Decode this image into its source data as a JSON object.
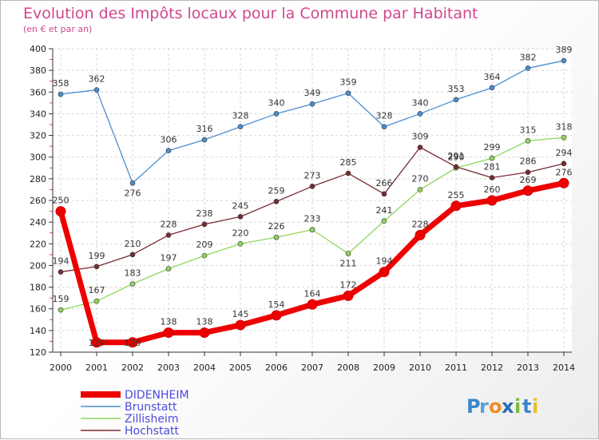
{
  "chart_data": {
    "type": "line",
    "title": "Evolution des Impôts locaux pour la Commune par Habitant",
    "subtitle": "(en € et par an)",
    "xlabel": "",
    "ylabel": "",
    "x": [
      "2000",
      "2001",
      "2002",
      "2003",
      "2004",
      "2005",
      "2006",
      "2007",
      "2008",
      "2009",
      "2010",
      "2011",
      "2012",
      "2013",
      "2014"
    ],
    "ylim": [
      120,
      400
    ],
    "yticks": [
      120,
      140,
      160,
      180,
      200,
      220,
      240,
      260,
      280,
      300,
      320,
      340,
      360,
      380,
      400
    ],
    "grid": true,
    "legend_position": "bottom-left",
    "series": [
      {
        "name": "Brunstatt",
        "color": "#4a8fd0",
        "values": [
          358,
          362,
          276,
          306,
          316,
          328,
          340,
          349,
          359,
          328,
          340,
          353,
          364,
          382,
          389
        ]
      },
      {
        "name": "Zillisheim",
        "color": "#8fd65a",
        "values": [
          159,
          167,
          183,
          197,
          209,
          220,
          226,
          233,
          211,
          241,
          270,
          290,
          299,
          315,
          318
        ]
      },
      {
        "name": "Hochstatt",
        "color": "#7a2a33",
        "values": [
          194,
          199,
          210,
          228,
          238,
          245,
          259,
          273,
          285,
          266,
          309,
          291,
          281,
          286,
          294
        ]
      },
      {
        "name": "DIDENHEIM",
        "color": "#ee0000",
        "values": [
          250,
          129,
          129,
          138,
          138,
          145,
          154,
          164,
          172,
          194,
          228,
          255,
          260,
          269,
          276
        ]
      }
    ],
    "legend_order": [
      "DIDENHEIM",
      "Brunstatt",
      "Zillisheim",
      "Hochstatt"
    ],
    "legend_text_color": "#4b4bdc"
  },
  "logo": {
    "text": "Proxiti",
    "letters": [
      "P",
      "r",
      "o",
      "x",
      "i",
      "t",
      "i"
    ],
    "colors": [
      "#3a86c8",
      "#5aa0d8",
      "#f28c28",
      "#2d6bb5",
      "#7dbb3b",
      "#3a86c8",
      "#e8c020"
    ]
  }
}
